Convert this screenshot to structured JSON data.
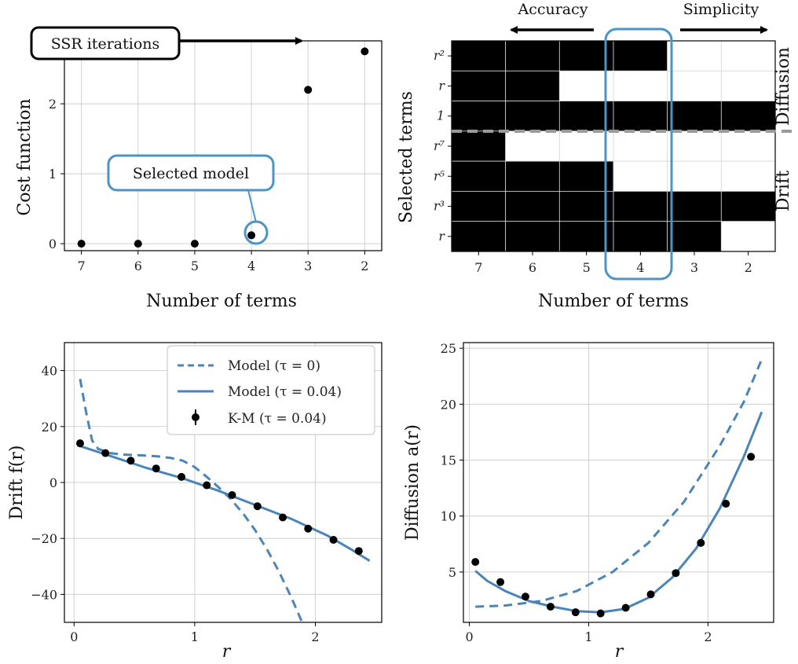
{
  "chart_data": [
    {
      "type": "scatter",
      "xlabel": "Number of terms",
      "ylabel": "Cost function",
      "x": [
        7,
        6,
        5,
        4,
        3,
        2
      ],
      "y": [
        0,
        0,
        0,
        0.12,
        2.2,
        2.75
      ],
      "xlim": [
        7.3,
        1.7
      ],
      "ylim": [
        -0.1,
        2.9
      ],
      "x_ticks": [
        "7",
        "6",
        "5",
        "4",
        "3",
        "2"
      ],
      "y_ticks": [
        "0",
        "1",
        "2"
      ],
      "grid": true,
      "annotations": [
        "SSR iterations",
        "Selected model"
      ],
      "highlight_x": 4,
      "colors": {
        "points": "#000000",
        "highlight": "#4b95c4"
      }
    },
    {
      "type": "heatmap",
      "xlabel": "Number of terms",
      "ylabel": "Selected terms",
      "columns": [
        "7",
        "6",
        "5",
        "4",
        "3",
        "2"
      ],
      "row_labels": [
        "r²",
        "r",
        "1",
        "r⁷",
        "r⁵",
        "r³",
        "r"
      ],
      "row_groups": [
        {
          "label": "Diffusion",
          "rows": [
            0,
            1,
            2
          ]
        },
        {
          "label": "Drift",
          "rows": [
            3,
            4,
            5,
            6
          ]
        }
      ],
      "matrix": [
        [
          1,
          1,
          1,
          1,
          0,
          0
        ],
        [
          1,
          1,
          0,
          0,
          0,
          0
        ],
        [
          1,
          1,
          1,
          1,
          1,
          1
        ],
        [
          1,
          0,
          0,
          0,
          0,
          0
        ],
        [
          1,
          1,
          1,
          0,
          0,
          0
        ],
        [
          1,
          1,
          1,
          1,
          1,
          1
        ],
        [
          1,
          1,
          1,
          1,
          1,
          0
        ]
      ],
      "annotations": [
        "Accuracy",
        "Simplicity"
      ],
      "highlight_column": "4",
      "colors": {
        "on": "#000000",
        "off": "#ffffff",
        "highlight": "#4b95c4",
        "divider": "#9a9a9a"
      }
    },
    {
      "type": "line",
      "xlabel": "r",
      "ylabel": "Drift f(r)",
      "xlim": [
        -0.08,
        2.55
      ],
      "ylim": [
        -50,
        50
      ],
      "x_ticks": [
        "0",
        "1",
        "2"
      ],
      "y_ticks": [
        "40",
        "20",
        "0",
        "−20",
        "−40"
      ],
      "grid": true,
      "legend": "top-right",
      "series": [
        {
          "name": "Model (τ = 0)",
          "style": "dashed",
          "x": [
            0.05,
            0.1,
            0.15,
            0.2,
            0.3,
            0.4,
            0.5,
            0.6,
            0.7,
            0.8,
            0.9,
            1.0,
            1.1,
            1.2,
            1.3,
            1.4,
            1.5,
            1.6,
            1.7,
            1.8,
            1.85,
            1.9
          ],
          "y": [
            37,
            25,
            15,
            12,
            10.5,
            10,
            9.8,
            9.6,
            9.3,
            8.8,
            7.8,
            5.5,
            2.0,
            -1.8,
            -6.0,
            -11.0,
            -17.0,
            -24.0,
            -32.0,
            -41.0,
            -46.0,
            -51.0
          ]
        },
        {
          "name": "Model (τ = 0.04)",
          "style": "solid",
          "x": [
            0.05,
            0.3,
            0.6,
            0.9,
            1.2,
            1.5,
            1.8,
            2.1,
            2.3,
            2.45
          ],
          "y": [
            13,
            9.5,
            5.2,
            1.5,
            -3,
            -8,
            -13,
            -19,
            -24,
            -28
          ]
        },
        {
          "name": "K-M (τ = 0.04)",
          "style": "points",
          "x": [
            0.05,
            0.26,
            0.47,
            0.68,
            0.89,
            1.1,
            1.31,
            1.52,
            1.73,
            1.94,
            2.15,
            2.36
          ],
          "y": [
            14,
            10.5,
            7.8,
            5.0,
            2.0,
            -1.0,
            -4.5,
            -8.5,
            -12.5,
            -16.5,
            -20.5,
            -24.5
          ]
        }
      ],
      "colors": {
        "model": "#4b85b8",
        "points": "#000000"
      }
    },
    {
      "type": "line",
      "xlabel": "r",
      "ylabel": "Diffusion a(r)",
      "xlim": [
        -0.05,
        2.55
      ],
      "ylim": [
        0.5,
        25.5
      ],
      "x_ticks": [
        "0",
        "1",
        "2"
      ],
      "y_ticks": [
        "25",
        "20",
        "15",
        "10",
        "5"
      ],
      "grid": true,
      "series": [
        {
          "name": "",
          "style": "dashed",
          "x": [
            0.05,
            0.3,
            0.6,
            0.9,
            1.2,
            1.5,
            1.8,
            2.1,
            2.3,
            2.45
          ],
          "y": [
            1.9,
            2.0,
            2.4,
            3.3,
            5.0,
            7.6,
            11.3,
            16.3,
            20.2,
            24.0
          ]
        },
        {
          "name": "",
          "style": "solid",
          "x": [
            0.05,
            0.15,
            0.3,
            0.5,
            0.7,
            0.9,
            1.1,
            1.3,
            1.5,
            1.7,
            1.9,
            2.1,
            2.3,
            2.45
          ],
          "y": [
            5.1,
            4.2,
            3.3,
            2.4,
            1.9,
            1.5,
            1.4,
            1.7,
            2.7,
            4.5,
            7.1,
            10.7,
            15.3,
            19.3
          ]
        },
        {
          "name": "",
          "style": "points",
          "x": [
            0.05,
            0.26,
            0.47,
            0.68,
            0.89,
            1.1,
            1.31,
            1.52,
            1.73,
            1.94,
            2.15,
            2.36
          ],
          "y": [
            5.9,
            4.1,
            2.8,
            1.9,
            1.4,
            1.3,
            1.8,
            3.0,
            4.9,
            7.6,
            11.1,
            15.3
          ]
        }
      ],
      "colors": {
        "model": "#4b85b8",
        "points": "#000000"
      }
    }
  ]
}
